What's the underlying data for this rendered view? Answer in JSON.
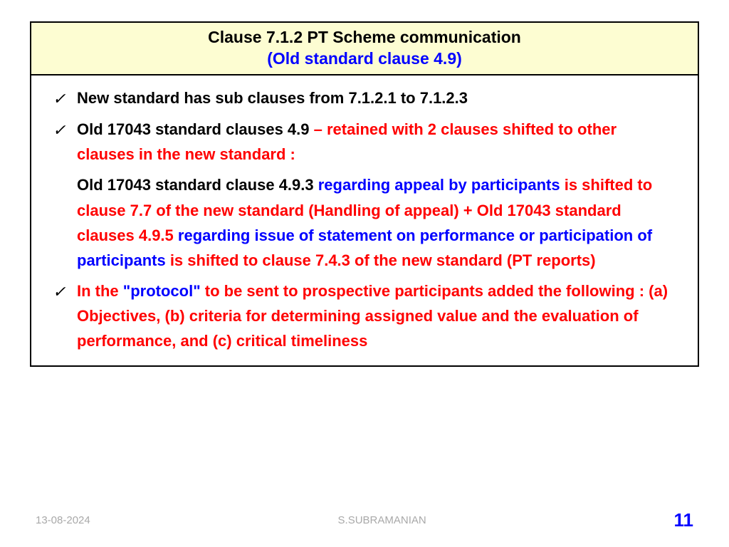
{
  "colors": {
    "title_bg": "#fdfdd2",
    "border": "#000000",
    "black": "#000000",
    "red": "#ff0000",
    "blue": "#0000ff",
    "footer_grey": "#a9a9a9",
    "page_bg": "#ffffff"
  },
  "typography": {
    "family": "Arial",
    "title_size_pt": 18,
    "body_size_pt": 17,
    "footer_size_pt": 11,
    "page_num_size_pt": 20,
    "body_weight": "bold"
  },
  "title": {
    "line1": "Clause 7.1.2 PT Scheme communication",
    "line2": "(Old standard clause 4.9)"
  },
  "bullets": [
    {
      "segments": [
        {
          "text": "New standard has sub clauses from 7.1.2.1 to 7.1.2.3",
          "color": "black"
        }
      ]
    },
    {
      "segments": [
        {
          "text": "Old 17043  standard clauses 4.9 ",
          "color": "black"
        },
        {
          "text": "– retained with 2 clauses shifted to other clauses in the new standard :",
          "color": "red"
        }
      ]
    }
  ],
  "sub_paragraph": {
    "segments": [
      {
        "text": "Old 17043 standard clause 4.9.3 ",
        "color": "black"
      },
      {
        "text": "regarding appeal by participants ",
        "color": "blue"
      },
      {
        "text": "is shifted to clause 7.7 of the new standard (Handling of appeal) + Old 17043 standard clauses 4.9.5 ",
        "color": "red"
      },
      {
        "text": "regarding issue of statement on performance or participation of participants ",
        "color": "blue"
      },
      {
        "text": "is shifted to clause 7.4.3 of the new standard (PT reports)",
        "color": "red"
      }
    ]
  },
  "bullet3": {
    "segments": [
      {
        "text": "In the ",
        "color": "red"
      },
      {
        "text": "\"protocol\" ",
        "color": "blue"
      },
      {
        "text": "to be sent to prospective participants added the following : (a) Objectives, (b) criteria for determining assigned  value and the evaluation of performance, and (c) critical timeliness",
        "color": "red"
      }
    ]
  },
  "footer": {
    "date": "13-08-2024",
    "author": "S.SUBRAMANIAN",
    "page": "11"
  }
}
